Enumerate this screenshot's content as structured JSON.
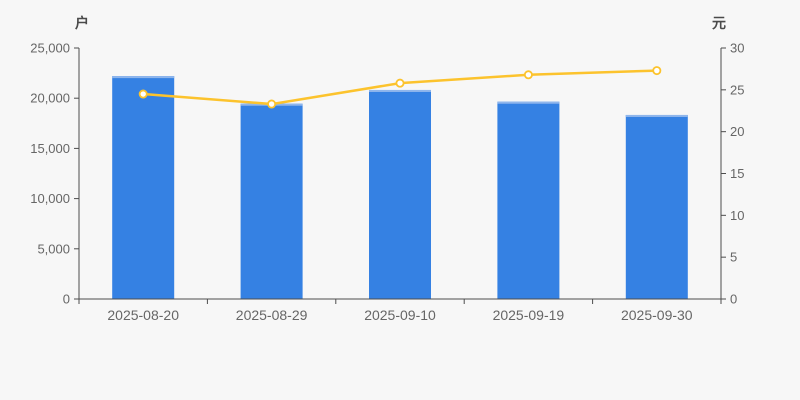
{
  "chart_data": {
    "type": "combo",
    "categories": [
      "2025-08-20",
      "2025-08-29",
      "2025-09-10",
      "2025-09-19",
      "2025-09-30"
    ],
    "series": [
      {
        "name": "户",
        "type": "bar",
        "axis": "left",
        "values": [
          22200,
          19450,
          20820,
          19650,
          18330
        ],
        "color": "#3581e3",
        "cap_color": "#8fb6ec"
      },
      {
        "name": "元",
        "type": "line",
        "axis": "right",
        "values": [
          24.5,
          23.3,
          25.8,
          26.8,
          27.3
        ],
        "color": "#fcc32d",
        "marker": "hollow-circle",
        "marker_fill": "#ffffff"
      }
    ],
    "left_axis": {
      "label": "户",
      "min": 0,
      "max": 25000,
      "step": 5000,
      "tick_labels": [
        "0",
        "5,000",
        "10,000",
        "15,000",
        "20,000",
        "25,000"
      ]
    },
    "right_axis": {
      "label": "元",
      "min": 0,
      "max": 30,
      "step": 5,
      "tick_labels": [
        "0",
        "5",
        "10",
        "15",
        "20",
        "25",
        "30"
      ]
    },
    "grid": false,
    "legend": false,
    "background": "#f7f7f7",
    "axis_color": "#4d4d4d",
    "tick_label_color": "#666666"
  }
}
